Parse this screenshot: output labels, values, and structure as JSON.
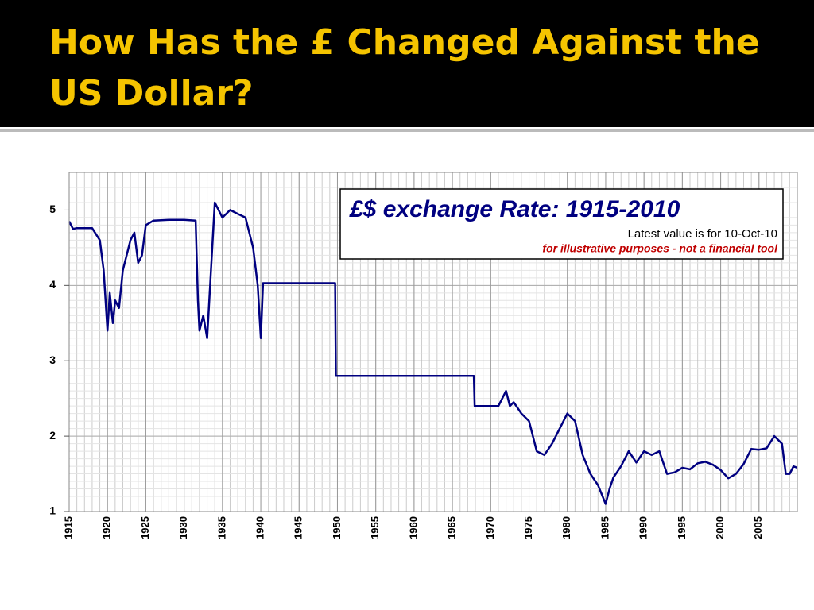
{
  "slide_title": "How Has the £ Changed Against the US Dollar?",
  "chart_data": {
    "type": "line",
    "title": "£$ exchange Rate: 1915-2010",
    "subtitle": "Latest value is for 10-Oct-10",
    "annotation": "for illustrative purposes - not a financial tool",
    "x": [
      1915,
      1915.5,
      1916,
      1917,
      1918,
      1919,
      1919.5,
      1920,
      1920.3,
      1920.7,
      1921,
      1921.5,
      1922,
      1922.5,
      1923,
      1923.5,
      1924,
      1924.5,
      1925,
      1926,
      1928,
      1930,
      1931.5,
      1931.8,
      1932,
      1932.5,
      1933,
      1933.5,
      1934,
      1935,
      1936,
      1937,
      1938,
      1939,
      1939.6,
      1940,
      1940.3,
      1949.7,
      1949.8,
      1967.8,
      1967.9,
      1971,
      1971.5,
      1972,
      1972.5,
      1973,
      1974,
      1975,
      1976,
      1977,
      1978,
      1979,
      1980,
      1981,
      1982,
      1983,
      1984,
      1985,
      1985.5,
      1986,
      1987,
      1988,
      1989,
      1990,
      1991,
      1992,
      1993,
      1994,
      1995,
      1996,
      1997,
      1998,
      1999,
      2000,
      2001,
      2002,
      2003,
      2004,
      2005,
      2006,
      2007,
      2008,
      2008.5,
      2009,
      2009.5,
      2010
    ],
    "series": [
      {
        "name": "£$ exchange Rate",
        "color": "#000080",
        "values": [
          4.85,
          4.75,
          4.76,
          4.76,
          4.76,
          4.6,
          4.2,
          3.4,
          3.9,
          3.5,
          3.8,
          3.7,
          4.2,
          4.4,
          4.6,
          4.7,
          4.3,
          4.4,
          4.8,
          4.86,
          4.87,
          4.87,
          4.86,
          3.8,
          3.4,
          3.6,
          3.3,
          4.2,
          5.1,
          4.9,
          5.0,
          4.95,
          4.9,
          4.5,
          4.0,
          3.3,
          4.03,
          4.03,
          2.8,
          2.8,
          2.4,
          2.4,
          2.5,
          2.6,
          2.4,
          2.45,
          2.3,
          2.2,
          1.8,
          1.75,
          1.9,
          2.1,
          2.3,
          2.2,
          1.75,
          1.5,
          1.35,
          1.1,
          1.3,
          1.45,
          1.6,
          1.8,
          1.65,
          1.8,
          1.75,
          1.8,
          1.5,
          1.52,
          1.58,
          1.56,
          1.64,
          1.66,
          1.62,
          1.55,
          1.44,
          1.5,
          1.63,
          1.83,
          1.82,
          1.84,
          2.0,
          1.9,
          1.5,
          1.5,
          1.6,
          1.58
        ]
      }
    ],
    "xlim": [
      1915,
      2010
    ],
    "xticks": [
      1915,
      1920,
      1925,
      1930,
      1935,
      1940,
      1945,
      1950,
      1955,
      1960,
      1965,
      1970,
      1975,
      1980,
      1985,
      1990,
      1995,
      2000,
      2005
    ],
    "ylim": [
      1,
      5.5
    ],
    "yticks": [
      1,
      2,
      3,
      4,
      5
    ],
    "grid": true
  }
}
